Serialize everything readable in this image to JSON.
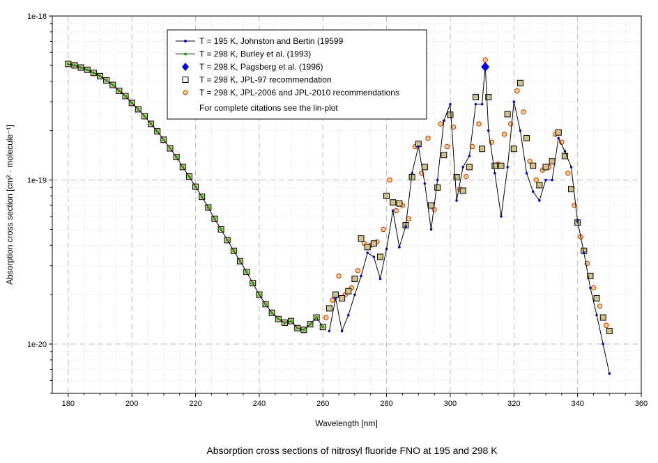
{
  "chart_data": {
    "type": "line",
    "title": "Absorption cross sections of nitrosyl fluoride FNO at 195 and 298 K",
    "xlabel": "Wavelength [nm]",
    "ylabel": "Absorption cross section [cm² · molecule⁻¹]",
    "xlim": [
      175,
      360
    ],
    "ylim": [
      5e-21,
      1e-18
    ],
    "yscale": "log",
    "grid": true,
    "legend_position": "top-left",
    "x_ticks": [
      180,
      200,
      220,
      240,
      260,
      280,
      300,
      320,
      340,
      360
    ],
    "y_ticks": [
      {
        "value": 1e-18,
        "label": "1e-18"
      },
      {
        "value": 1e-19,
        "label": "1e-19"
      },
      {
        "value": 1e-20,
        "label": "1e-20"
      }
    ],
    "legend_note": "For complete citations see the lin-plot",
    "series": [
      {
        "name": "T = 195 K, Johnston and Bertin (19599",
        "color": "#0000cc",
        "marker": "dot",
        "line": true,
        "x": [
          262,
          264,
          266,
          268,
          270,
          272,
          274,
          276,
          278,
          280,
          282,
          284,
          286,
          288,
          290,
          292,
          294,
          296,
          298,
          300,
          302,
          304,
          306,
          308,
          310,
          311,
          312,
          314,
          316,
          318,
          320,
          322,
          324,
          326,
          328,
          330,
          332,
          334,
          336,
          338,
          340,
          342,
          344,
          346,
          348,
          350
        ],
        "y": [
          1.2e-20,
          1.9e-20,
          1.2e-20,
          1.5e-20,
          2e-20,
          2.6e-20,
          3.6e-20,
          3.4e-20,
          2.5e-20,
          3.8e-20,
          6.5e-20,
          3.9e-20,
          5.2e-20,
          1.1e-19,
          1.6e-19,
          9.5e-20,
          5e-20,
          1e-19,
          2.3e-19,
          2.9e-19,
          7.5e-20,
          1.2e-19,
          1.4e-19,
          2.9e-19,
          2.9e-19,
          5e-19,
          2e-19,
          1.1e-19,
          6e-20,
          1.2e-19,
          3e-19,
          2e-19,
          1.1e-19,
          8.5e-20,
          7.5e-20,
          1e-19,
          1e-19,
          1.8e-19,
          1.5e-19,
          1.2e-19,
          5.6e-20,
          3.6e-20,
          2.2e-20,
          1.5e-20,
          1e-20,
          6.6e-21
        ]
      },
      {
        "name": "T = 298 K, Burley et al. (1993)",
        "color": "#00b000",
        "marker": "dot",
        "line": true,
        "x": [
          180,
          182,
          184,
          186,
          188,
          190,
          192,
          194,
          196,
          198,
          200,
          202,
          204,
          206,
          208,
          210,
          212,
          214,
          216,
          218,
          220,
          222,
          224,
          226,
          228,
          230,
          232,
          234,
          236,
          238,
          240,
          242,
          244,
          246,
          248,
          250,
          252,
          254,
          256,
          258,
          260
        ],
        "y": [
          5.1e-19,
          5e-19,
          4.85e-19,
          4.7e-19,
          4.5e-19,
          4.3e-19,
          4.05e-19,
          3.8e-19,
          3.5e-19,
          3.25e-19,
          2.95e-19,
          2.7e-19,
          2.45e-19,
          2.2e-19,
          1.98e-19,
          1.76e-19,
          1.56e-19,
          1.38e-19,
          1.2e-19,
          1.05e-19,
          9.1e-20,
          7.9e-20,
          6.8e-20,
          5.8e-20,
          5e-20,
          4.3e-20,
          3.7e-20,
          3.2e-20,
          2.75e-20,
          2.35e-20,
          2e-20,
          1.75e-20,
          1.55e-20,
          1.42e-20,
          1.35e-20,
          1.38e-20,
          1.25e-20,
          1.22e-20,
          1.32e-20,
          1.45e-20,
          1.27e-20
        ]
      },
      {
        "name": "T = 298 K, Pagsberg et al. (1996)",
        "color": "#0000dd",
        "marker": "diamond",
        "line": false,
        "x": [
          311
        ],
        "y": [
          4.9e-19
        ]
      },
      {
        "name": "T = 298 K, JPL-97 recommendation",
        "color": "#000000",
        "marker": "square",
        "line": false,
        "x": [
          180,
          182,
          184,
          186,
          188,
          190,
          192,
          194,
          196,
          198,
          200,
          202,
          204,
          206,
          208,
          210,
          212,
          214,
          216,
          218,
          220,
          222,
          224,
          226,
          228,
          230,
          232,
          234,
          236,
          238,
          240,
          242,
          244,
          246,
          248,
          250,
          252,
          254,
          256,
          258,
          260,
          262,
          264,
          266,
          268,
          270,
          272,
          274,
          276,
          278,
          280,
          282,
          284,
          286,
          288,
          290,
          292,
          294,
          296,
          298,
          300,
          302,
          304,
          306,
          308,
          310,
          312,
          314,
          316,
          318,
          320,
          322,
          324,
          326,
          328,
          330,
          332,
          334,
          336,
          338,
          340,
          342,
          344,
          346,
          348,
          350
        ],
        "y": [
          5.1e-19,
          5e-19,
          4.85e-19,
          4.7e-19,
          4.5e-19,
          4.3e-19,
          4.05e-19,
          3.8e-19,
          3.5e-19,
          3.25e-19,
          2.95e-19,
          2.7e-19,
          2.45e-19,
          2.2e-19,
          1.98e-19,
          1.76e-19,
          1.56e-19,
          1.38e-19,
          1.2e-19,
          1.05e-19,
          9.1e-20,
          7.9e-20,
          6.8e-20,
          5.8e-20,
          5e-20,
          4.3e-20,
          3.7e-20,
          3.2e-20,
          2.75e-20,
          2.35e-20,
          2e-20,
          1.75e-20,
          1.55e-20,
          1.42e-20,
          1.35e-20,
          1.38e-20,
          1.25e-20,
          1.22e-20,
          1.32e-20,
          1.45e-20,
          1.27e-20,
          1.65e-20,
          2e-20,
          1.9e-20,
          2.1e-20,
          2.5e-20,
          4.4e-20,
          3.9e-20,
          4.1e-20,
          3.4e-20,
          8e-20,
          7.3e-20,
          7.2e-20,
          5.3e-20,
          1.04e-19,
          1.66e-19,
          1.2e-19,
          7e-20,
          9e-20,
          1.42e-19,
          2.5e-19,
          1.04e-19,
          8.6e-20,
          1.2e-19,
          3.2e-19,
          1.55e-19,
          3.2e-19,
          1.22e-19,
          1.22e-19,
          2.52e-19,
          1.55e-19,
          3.9e-19,
          1.8e-19,
          1.22e-19,
          9.3e-20,
          1.2e-19,
          1.3e-19,
          1.95e-19,
          1.4e-19,
          8.8e-20,
          5.5e-20,
          3.7e-20,
          2.6e-20,
          1.9e-20,
          1.45e-20,
          1.2e-20
        ]
      },
      {
        "name": "T = 298 K, JPL-2006 and JPL-2010 recommendations",
        "color": "#cc3300",
        "marker": "circle",
        "line": false,
        "x": [
          180,
          182,
          184,
          186,
          188,
          190,
          192,
          194,
          196,
          198,
          200,
          202,
          204,
          206,
          208,
          210,
          212,
          214,
          216,
          218,
          220,
          222,
          224,
          226,
          228,
          230,
          232,
          234,
          236,
          238,
          240,
          242,
          244,
          246,
          248,
          250,
          252,
          254,
          256,
          258,
          260,
          261,
          262,
          263,
          264,
          265,
          266,
          267,
          268,
          269,
          270,
          271,
          272,
          273,
          274,
          275,
          276,
          277,
          278,
          279,
          280,
          281,
          282,
          283,
          284,
          285,
          286,
          287,
          288,
          289,
          290,
          291,
          292,
          293,
          294,
          295,
          296,
          297,
          298,
          299,
          300,
          301,
          302,
          303,
          304,
          305,
          306,
          307,
          308,
          309,
          310,
          311,
          312,
          313,
          314,
          315,
          316,
          317,
          318,
          319,
          320,
          321,
          322,
          323,
          324,
          325,
          326,
          327,
          328,
          329,
          330,
          331,
          332,
          333,
          334,
          335,
          336,
          337,
          338,
          339,
          340,
          341,
          342,
          343,
          344,
          345,
          346,
          347,
          348,
          349,
          350
        ],
        "y": [
          5.1e-19,
          5e-19,
          4.85e-19,
          4.7e-19,
          4.5e-19,
          4.3e-19,
          4.05e-19,
          3.8e-19,
          3.5e-19,
          3.25e-19,
          2.95e-19,
          2.7e-19,
          2.45e-19,
          2.2e-19,
          1.98e-19,
          1.76e-19,
          1.56e-19,
          1.38e-19,
          1.2e-19,
          1.05e-19,
          9.1e-20,
          7.9e-20,
          6.8e-20,
          5.8e-20,
          5e-20,
          4.3e-20,
          3.7e-20,
          3.2e-20,
          2.75e-20,
          2.35e-20,
          2e-20,
          1.75e-20,
          1.55e-20,
          1.42e-20,
          1.35e-20,
          1.38e-20,
          1.25e-20,
          1.22e-20,
          1.32e-20,
          1.45e-20,
          1.27e-20,
          1.45e-20,
          1.65e-20,
          1.85e-20,
          2e-20,
          2.6e-20,
          1.9e-20,
          2e-20,
          2.1e-20,
          2.2e-20,
          2.5e-20,
          2.8e-20,
          4.4e-20,
          4.1e-20,
          3.9e-20,
          4e-20,
          4.1e-20,
          4.2e-20,
          3.4e-20,
          5e-20,
          8e-20,
          1e-19,
          7.3e-20,
          6.5e-20,
          7.2e-20,
          7e-20,
          5.3e-20,
          5.8e-20,
          1.04e-19,
          1.6e-19,
          1.66e-19,
          1.1e-19,
          1.2e-19,
          1.8e-19,
          7e-20,
          6.6e-20,
          9e-20,
          2.2e-19,
          1.42e-19,
          1.6e-19,
          2.5e-19,
          2.1e-19,
          1.04e-19,
          8.8e-20,
          8.6e-20,
          1.05e-19,
          1.2e-19,
          1.6e-19,
          3.2e-19,
          2.2e-19,
          1.55e-19,
          5.4e-19,
          3.2e-19,
          1.7e-19,
          1.22e-19,
          1.25e-19,
          1.22e-19,
          1.9e-19,
          2.52e-19,
          2.2e-19,
          1.55e-19,
          3.5e-19,
          3.9e-19,
          2.6e-19,
          1.8e-19,
          1.3e-19,
          1.22e-19,
          1e-19,
          9.3e-20,
          1.15e-19,
          1.2e-19,
          1.2e-19,
          1.3e-19,
          1.9e-19,
          1.95e-19,
          1.7e-19,
          1.4e-19,
          1.1e-19,
          8.8e-20,
          7e-20,
          5.5e-20,
          4.5e-20,
          3.7e-20,
          3.1e-20,
          2.6e-20,
          2.2e-20,
          1.9e-20,
          1.7e-20,
          1.45e-20,
          1.3e-20,
          1.2e-20
        ]
      }
    ]
  }
}
